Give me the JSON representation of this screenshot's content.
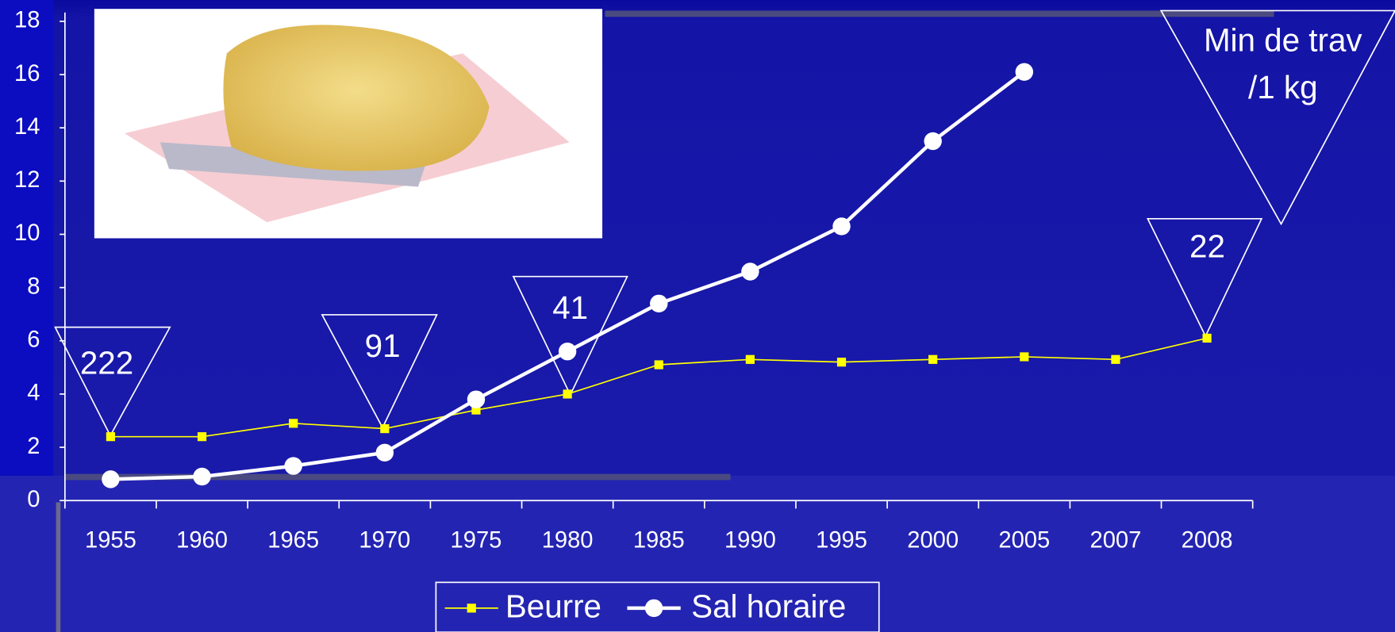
{
  "chart_data": {
    "type": "line",
    "categories": [
      "1955",
      "1960",
      "1965",
      "1970",
      "1975",
      "1980",
      "1985",
      "1990",
      "1995",
      "2000",
      "2005",
      "2007",
      "2008"
    ],
    "series": [
      {
        "name": "Beurre",
        "color": "#ffff00",
        "marker": "square",
        "values": [
          2.4,
          2.4,
          2.9,
          2.7,
          3.4,
          4.0,
          5.1,
          5.3,
          5.2,
          5.3,
          5.4,
          5.3,
          6.1
        ]
      },
      {
        "name": "Sal horaire",
        "color": "#ffffff",
        "marker": "circle",
        "values": [
          0.8,
          0.9,
          1.3,
          1.8,
          3.8,
          5.6,
          7.4,
          8.6,
          10.3,
          13.5,
          16.1,
          null,
          null
        ]
      }
    ],
    "ylim": [
      0,
      18
    ],
    "yticks": [
      0,
      2,
      4,
      6,
      8,
      10,
      12,
      14,
      16,
      18
    ],
    "annotations": [
      "222",
      "91",
      "41",
      "22"
    ],
    "callout": [
      "Min de trav",
      "/1 kg"
    ],
    "legend": "bottom"
  }
}
